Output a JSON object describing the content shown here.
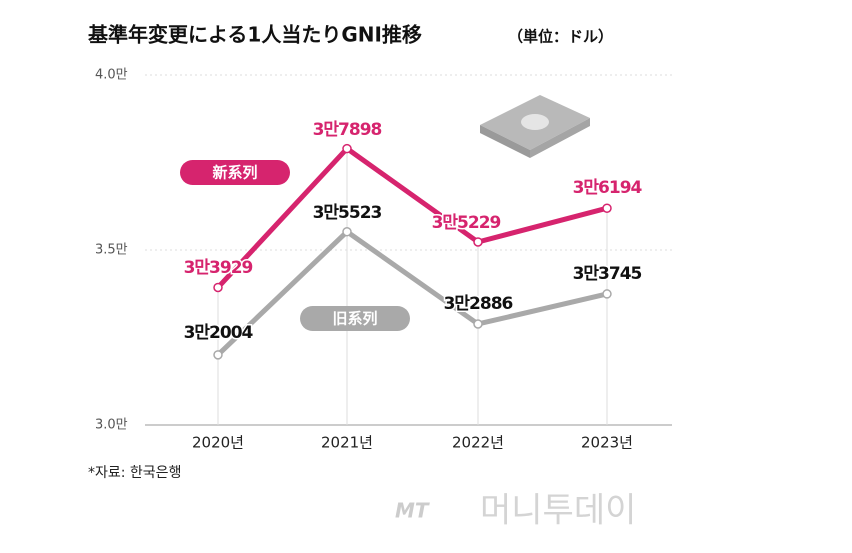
{
  "chart_data": {
    "type": "line",
    "title": "基準年変更による1人当たりGNI推移",
    "subtitle": "（単位：ドル）",
    "categories": [
      "2020년",
      "2021년",
      "2022년",
      "2023년"
    ],
    "series": [
      {
        "name": "新系列",
        "color": "#d6246e",
        "values": [
          33929,
          37898,
          35229,
          36194
        ],
        "value_labels": [
          "3만3929",
          "3만7898",
          "3만5229",
          "3만6194"
        ]
      },
      {
        "name": "旧系列",
        "color": "#a9a9a9",
        "values": [
          32004,
          35523,
          32886,
          33745
        ],
        "value_labels": [
          "3만2004",
          "3만5523",
          "3만2886",
          "3만3745"
        ]
      }
    ],
    "ylim": [
      30000,
      40000
    ],
    "yticks": [
      {
        "value": 30000,
        "label": "3.0만"
      },
      {
        "value": 35000,
        "label": "3.5만"
      },
      {
        "value": 40000,
        "label": "4.0만"
      }
    ],
    "grid": true,
    "source": "*자료: 한국은행",
    "watermark": "머니투데이",
    "watermark_logo": "MT"
  }
}
